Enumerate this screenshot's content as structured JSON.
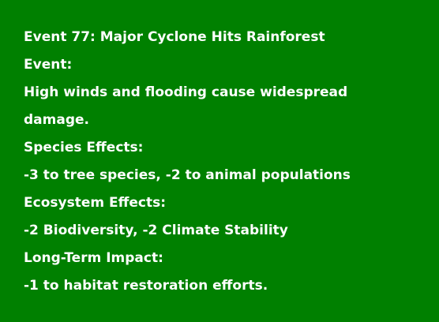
{
  "event_card": {
    "title": "Event 77: Major Cyclone Hits Rainforest",
    "event_label": "Event:",
    "event_text_line1": "High winds and flooding cause widespread",
    "event_text_line2": "damage.",
    "species_label": "Species Effects:",
    "species_text": "-3 to tree species, -2 to animal populations",
    "ecosystem_label": "Ecosystem Effects:",
    "ecosystem_text": "-2 Biodiversity, -2 Climate Stability",
    "longterm_label": "Long-Term Impact:",
    "longterm_text": "-1 to habitat restoration efforts.",
    "colors": {
      "background": "#008000",
      "text": "#ffffff"
    }
  }
}
